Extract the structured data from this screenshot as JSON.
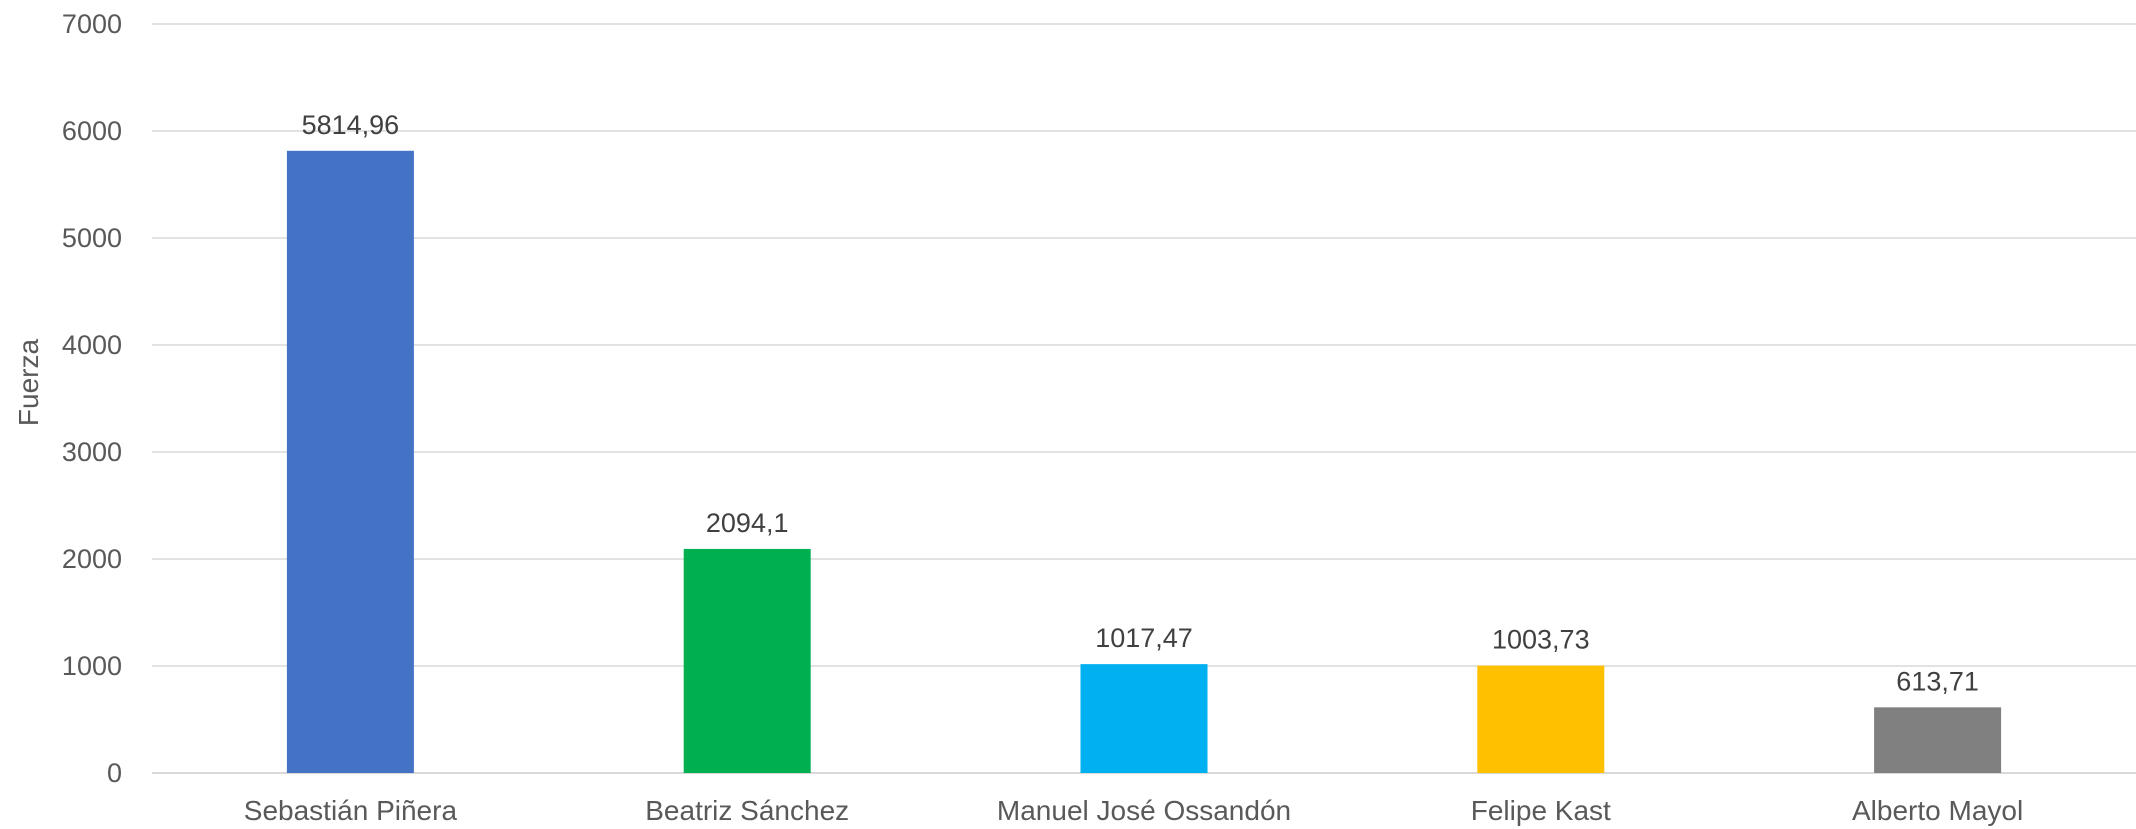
{
  "chart_data": {
    "type": "bar",
    "categories": [
      "Sebastián Piñera",
      "Beatriz Sánchez",
      "Manuel José Ossandón",
      "Felipe Kast",
      "Alberto Mayol"
    ],
    "values": [
      5814.96,
      2094.1,
      1017.47,
      1003.73,
      613.71
    ],
    "value_labels": [
      "5814,96",
      "2094,1",
      "1017,47",
      "1003,73",
      "613,71"
    ],
    "colors": [
      "#4472c4",
      "#00b050",
      "#00b0f0",
      "#ffc000",
      "#808080"
    ],
    "title": "",
    "xlabel": "",
    "ylabel": "Fuerza",
    "ylim": [
      0,
      7000
    ],
    "yticks": [
      0,
      1000,
      2000,
      3000,
      4000,
      5000,
      6000,
      7000
    ],
    "ytick_labels": [
      "0",
      "1000",
      "2000",
      "3000",
      "4000",
      "5000",
      "6000",
      "7000"
    ],
    "grid": true,
    "legend": "none"
  }
}
